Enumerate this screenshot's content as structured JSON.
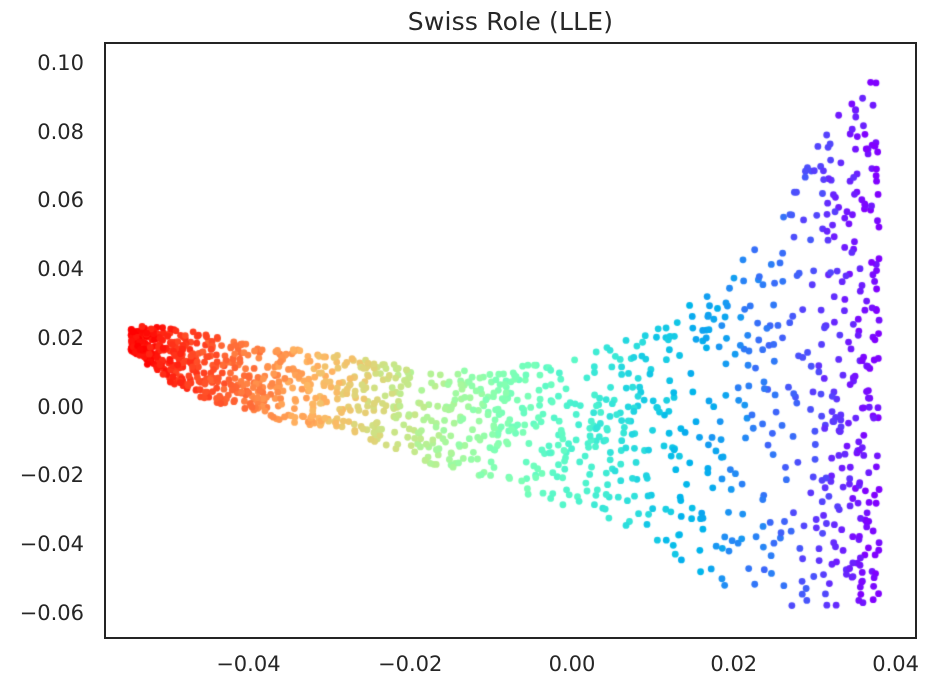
{
  "chart_data": {
    "type": "scatter",
    "title": "Swiss Role (LLE)",
    "xlabel": "",
    "ylabel": "",
    "xlim": [
      -0.0576,
      0.0424
    ],
    "ylim": [
      -0.067,
      0.1055
    ],
    "grid": false,
    "legend": "none",
    "xticks": {
      "values": [
        -0.04,
        -0.02,
        0.0,
        0.02,
        0.04
      ],
      "labels": [
        "−0.04",
        "−0.02",
        "0.00",
        "0.02",
        "0.04"
      ]
    },
    "yticks": {
      "values": [
        0.1,
        0.08,
        0.06,
        0.04,
        0.02,
        0.0,
        -0.02,
        -0.04,
        -0.06
      ],
      "labels": [
        "0.10",
        "0.08",
        "0.06",
        "0.04",
        "0.02",
        "0.00",
        "−0.02",
        "−0.04",
        "−0.06"
      ]
    },
    "marker": {
      "radius_px": 3.4,
      "alpha": 1.0
    },
    "colormap": {
      "name": "rainbow (reversed along x)",
      "formula": "t in [0,1]: R=|2t-0.5| clipped, G=sin(pi*t), B=cos(pi*t/2); t ~ 1 at left (red), 0 at right (violet)",
      "left_color": "#ff0000",
      "mid_color": "#80ffb4",
      "right_color": "#8000ff"
    },
    "points": {
      "description": "LLE embedding of a swiss roll: a dense red tip at far left (x=-0.054, y=0.02) tapering into a band that widens and fans out to the right, covering y from -0.06 to 0.098 near x=0.038; hue follows x from red through orange, yellow, green, cyan, blue to violet",
      "n": 1500,
      "seed": 11,
      "x_min": -0.0545,
      "x_max": 0.038,
      "x_power": 1.35,
      "right_column_fraction": 0.12,
      "right_column_u_start": 0.9,
      "color_noise": 0.05,
      "envelope": {
        "u": [
          0.0,
          0.05,
          0.1,
          0.2,
          0.3,
          0.4,
          0.5,
          0.6,
          0.7,
          0.8,
          0.85,
          0.9,
          0.95,
          1.0
        ],
        "y_top": [
          0.0235,
          0.023,
          0.0215,
          0.017,
          0.015,
          0.01,
          0.011,
          0.015,
          0.0235,
          0.038,
          0.052,
          0.07,
          0.087,
          0.0985
        ],
        "y_bottom": [
          0.016,
          0.007,
          0.002,
          -0.004,
          -0.008,
          -0.0165,
          -0.0235,
          -0.031,
          -0.0405,
          -0.053,
          -0.0575,
          -0.06,
          -0.059,
          -0.056
        ]
      }
    }
  },
  "styles": {
    "background": "#ffffff",
    "text_color": "#262626",
    "spine_color": "#242424"
  }
}
